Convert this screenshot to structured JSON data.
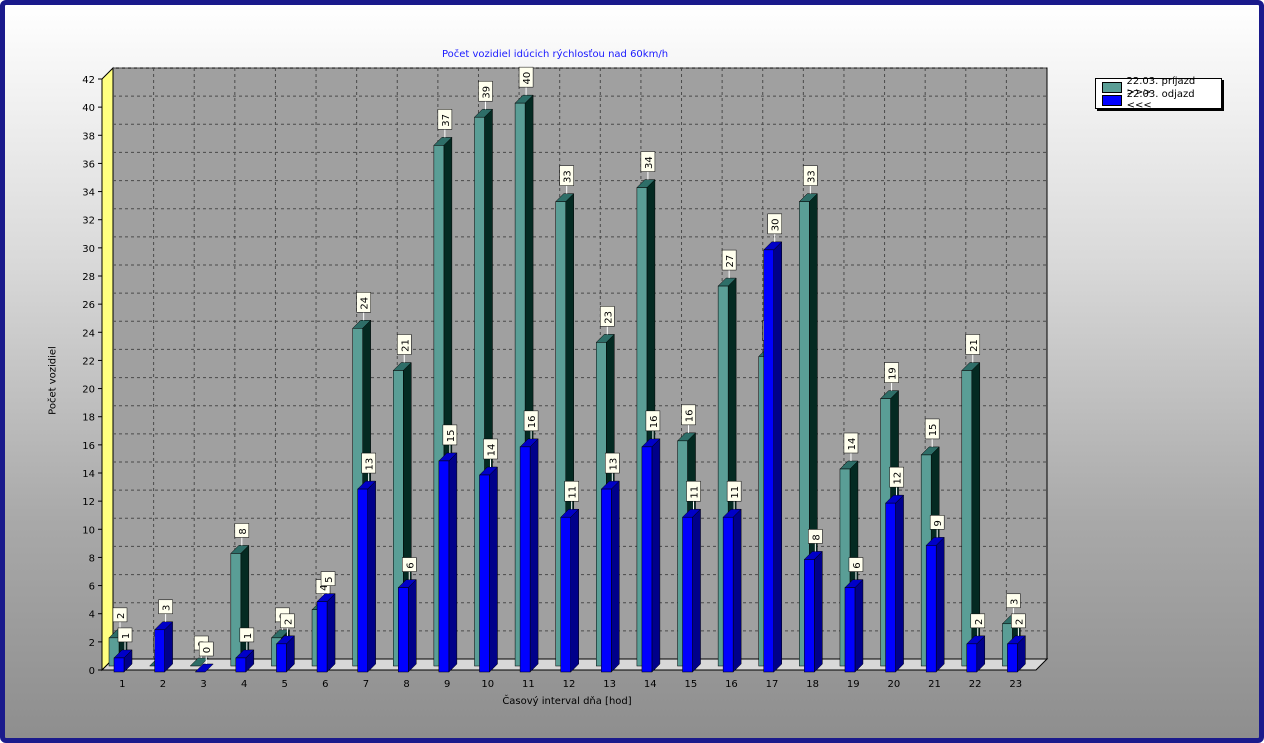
{
  "chart_data": {
    "type": "bar",
    "title": "Počet vozidiel idúcich rýchlosťou nad 60km/h",
    "xlabel": "Časový interval dňa [hod]",
    "ylabel": "Počet vozidiel",
    "ylim": [
      0,
      42
    ],
    "yticks": [
      0,
      2,
      4,
      6,
      8,
      10,
      12,
      14,
      16,
      18,
      20,
      22,
      24,
      26,
      28,
      30,
      32,
      34,
      36,
      38,
      40,
      42
    ],
    "categories": [
      "1",
      "2",
      "3",
      "4",
      "5",
      "6",
      "7",
      "8",
      "9",
      "10",
      "11",
      "12",
      "13",
      "14",
      "15",
      "16",
      "17",
      "18",
      "19",
      "20",
      "21",
      "22",
      "23"
    ],
    "grid": true,
    "legend_position": "top-right",
    "series": [
      {
        "name": "22.03.  príjazd >>>",
        "color": "#5a9e96",
        "values": [
          2,
          0,
          0,
          8,
          2,
          4,
          24,
          21,
          37,
          39,
          40,
          33,
          23,
          34,
          16,
          27,
          22,
          33,
          14,
          19,
          15,
          21,
          3
        ]
      },
      {
        "name": "22.03.  odjazd <<<",
        "color": "#0000ff",
        "values": [
          1,
          3,
          0,
          1,
          2,
          5,
          13,
          6,
          15,
          14,
          16,
          11,
          13,
          16,
          11,
          11,
          30,
          8,
          6,
          12,
          9,
          2,
          2
        ]
      }
    ]
  }
}
